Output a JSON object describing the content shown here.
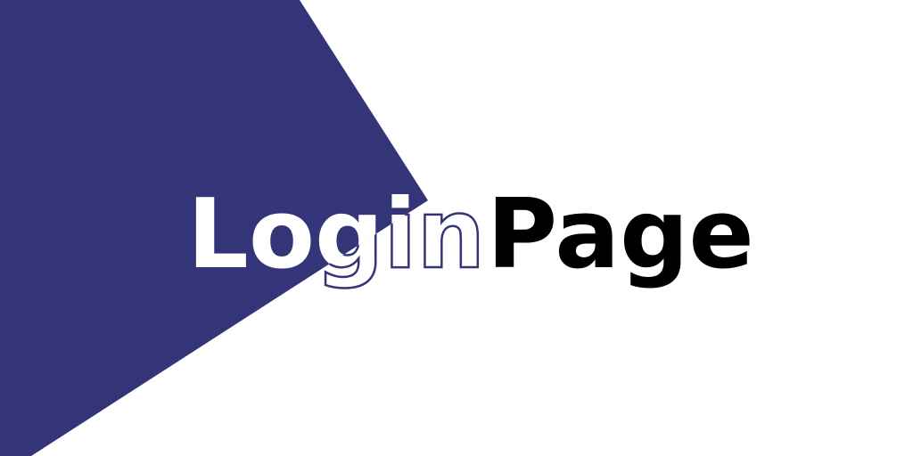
{
  "banner": {
    "title": "Login Page",
    "word_1": "Login",
    "word_2": "Page"
  },
  "colors": {
    "background": "#ffffff",
    "accent": "#343478",
    "text_dark": "#000000",
    "text_light": "#ffffff"
  }
}
